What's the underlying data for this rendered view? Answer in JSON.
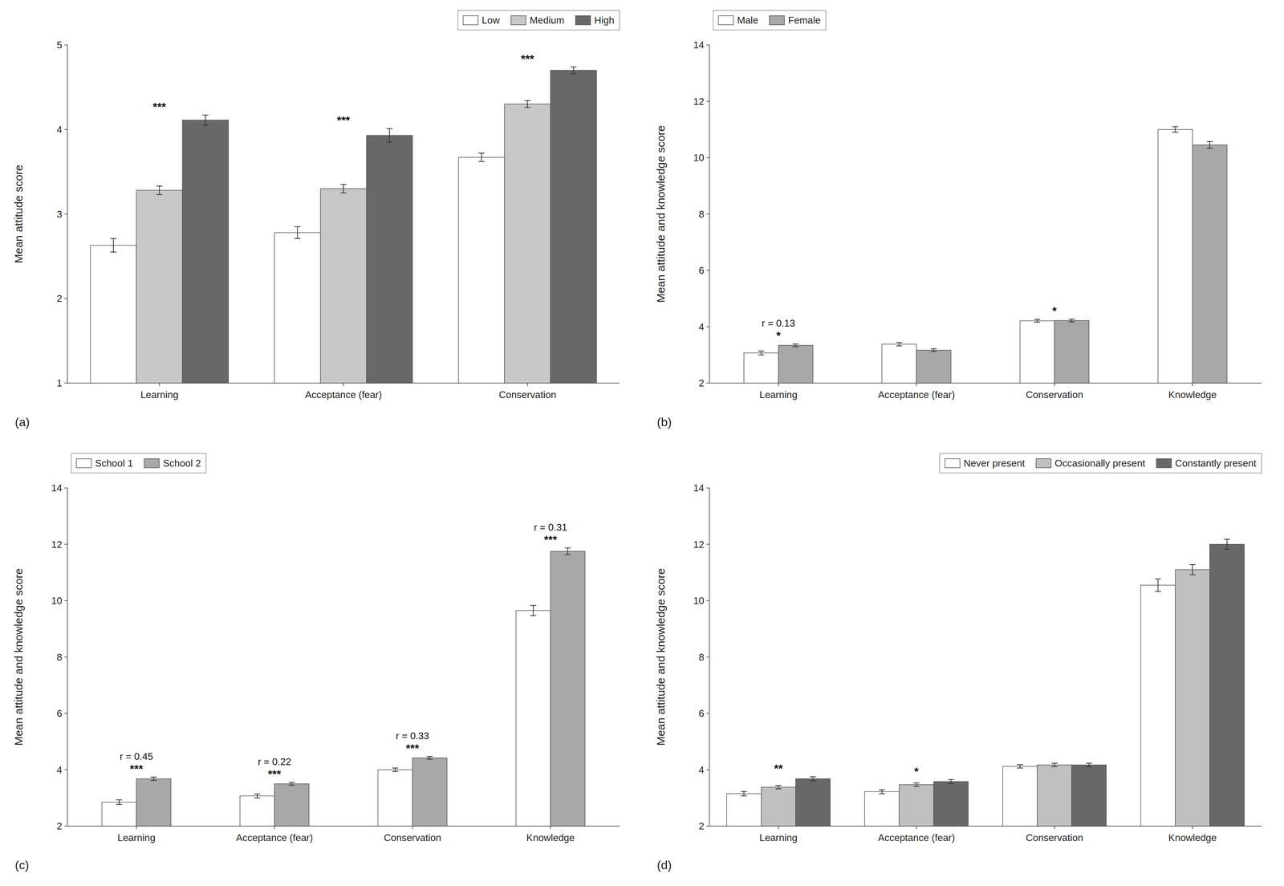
{
  "chart_data": [
    {
      "type": "bar",
      "title": "(a)",
      "ylabel": "Mean attitude score",
      "categories": [
        "Learning",
        "Acceptance (fear)",
        "Conservation"
      ],
      "series": [
        {
          "name": "Low",
          "color": "#ffffff",
          "values": [
            2.63,
            2.78,
            3.67
          ],
          "errors": [
            0.08,
            0.07,
            0.05
          ]
        },
        {
          "name": "Medium",
          "color": "#c8c8c8",
          "values": [
            3.28,
            3.3,
            4.3
          ],
          "errors": [
            0.05,
            0.05,
            0.04
          ]
        },
        {
          "name": "High",
          "color": "#686868",
          "values": [
            4.11,
            3.93,
            4.7
          ],
          "errors": [
            0.06,
            0.08,
            0.04
          ]
        }
      ],
      "ylim": [
        1,
        5
      ],
      "yticks": [
        1,
        2,
        3,
        4,
        5
      ],
      "grid": false,
      "legend": "upper right",
      "annotations": [
        {
          "text": "***",
          "category": "Learning"
        },
        {
          "text": "***",
          "category": "Acceptance (fear)"
        },
        {
          "text": "***",
          "category": "Conservation"
        }
      ]
    },
    {
      "type": "bar",
      "title": "(b)",
      "ylabel": "Mean attitude and knowledge score",
      "categories": [
        "Learning",
        "Acceptance (fear)",
        "Conservation",
        "Knowledge"
      ],
      "series": [
        {
          "name": "Male",
          "color": "#ffffff",
          "values": [
            3.07,
            3.38,
            4.21,
            11.0
          ],
          "errors": [
            0.07,
            0.06,
            0.05,
            0.1
          ]
        },
        {
          "name": "Female",
          "color": "#a8a8a8",
          "values": [
            3.34,
            3.17,
            4.22,
            10.45
          ],
          "errors": [
            0.05,
            0.05,
            0.05,
            0.12
          ]
        }
      ],
      "ylim": [
        2,
        14
      ],
      "yticks": [
        2,
        4,
        6,
        8,
        10,
        12,
        14
      ],
      "grid": false,
      "legend": "upper left",
      "annotations": [
        {
          "text": "r = 0.13",
          "category": "Learning"
        },
        {
          "text": "*",
          "category": "Learning"
        },
        {
          "text": "*",
          "category": "Conservation"
        }
      ]
    },
    {
      "type": "bar",
      "title": "(c)",
      "ylabel": "Mean attitude and knowledge score",
      "categories": [
        "Learning",
        "Acceptance (fear)",
        "Conservation",
        "Knowledge"
      ],
      "series": [
        {
          "name": "School 1",
          "color": "#ffffff",
          "values": [
            2.85,
            3.07,
            4.0,
            9.65
          ],
          "errors": [
            0.08,
            0.07,
            0.06,
            0.18
          ]
        },
        {
          "name": "School 2",
          "color": "#a8a8a8",
          "values": [
            3.68,
            3.5,
            4.42,
            11.75
          ],
          "errors": [
            0.06,
            0.05,
            0.05,
            0.12
          ]
        }
      ],
      "ylim": [
        2,
        14
      ],
      "yticks": [
        2,
        4,
        6,
        8,
        10,
        12,
        14
      ],
      "grid": false,
      "legend": "upper left",
      "annotations": [
        {
          "text": "r = 0.45",
          "category": "Learning"
        },
        {
          "text": "***",
          "category": "Learning"
        },
        {
          "text": "r = 0.22",
          "category": "Acceptance (fear)"
        },
        {
          "text": "***",
          "category": "Acceptance (fear)"
        },
        {
          "text": "r = 0.33",
          "category": "Conservation"
        },
        {
          "text": "***",
          "category": "Conservation"
        },
        {
          "text": "r = 0.31",
          "category": "Knowledge"
        },
        {
          "text": "***",
          "category": "Knowledge"
        }
      ]
    },
    {
      "type": "bar",
      "title": "(d)",
      "ylabel": "Mean attitude and knowledge score",
      "categories": [
        "Learning",
        "Acceptance (fear)",
        "Conservation",
        "Knowledge"
      ],
      "series": [
        {
          "name": "Never present",
          "color": "#ffffff",
          "values": [
            3.15,
            3.22,
            4.12,
            10.55
          ],
          "errors": [
            0.08,
            0.07,
            0.06,
            0.22
          ]
        },
        {
          "name": "Occasionally present",
          "color": "#c0c0c0",
          "values": [
            3.38,
            3.47,
            4.17,
            11.1
          ],
          "errors": [
            0.06,
            0.06,
            0.06,
            0.18
          ]
        },
        {
          "name": "Constantly present",
          "color": "#686868",
          "values": [
            3.68,
            3.58,
            4.17,
            12.0
          ],
          "errors": [
            0.07,
            0.07,
            0.06,
            0.18
          ]
        }
      ],
      "ylim": [
        2,
        14
      ],
      "yticks": [
        2,
        4,
        6,
        8,
        10,
        12,
        14
      ],
      "grid": false,
      "legend": "upper right",
      "annotations": [
        {
          "text": "**",
          "category": "Learning"
        },
        {
          "text": "*",
          "category": "Acceptance (fear)"
        }
      ]
    }
  ]
}
